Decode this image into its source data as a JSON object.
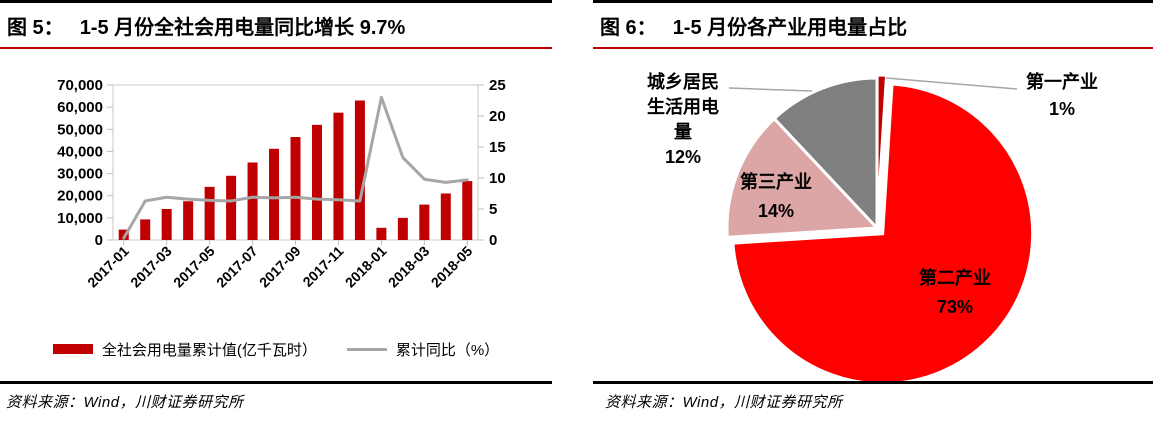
{
  "panels": {
    "fig5": {
      "title_prefix": "图 5：",
      "title": "1-5 月份全社会用电量同比增长 9.7%",
      "source": "资料来源：Wind，川财证券研究所",
      "accent_color": "#C00000"
    },
    "fig6": {
      "title_prefix": "图 6：",
      "title": "1-5 月份各产业用电量占比",
      "source": "资料来源：Wind，川财证券研究所",
      "accent_color": "#C00000"
    }
  },
  "chart_data": [
    {
      "type": "bar",
      "subtype": "bar+line dual axis",
      "title": "1-5 月份全社会用电量同比增长 9.7%",
      "x": [
        "2017-01",
        "2017-02",
        "2017-03",
        "2017-04",
        "2017-05",
        "2017-06",
        "2017-07",
        "2017-08",
        "2017-09",
        "2017-10",
        "2017-11",
        "2017-12",
        "2018-01",
        "2018-02",
        "2018-03",
        "2018-04",
        "2018-05"
      ],
      "x_tick_labels": [
        "2017-01",
        "2017-03",
        "2017-05",
        "2017-07",
        "2017-09",
        "2017-11",
        "2018-01",
        "2018-03",
        "2018-05"
      ],
      "series": [
        {
          "name": "全社会用电量累计值(亿千瓦时）",
          "type": "bar",
          "axis": "left",
          "color": "#C00000",
          "values": [
            4700,
            9300,
            14000,
            17500,
            24000,
            29000,
            35000,
            41200,
            46500,
            52000,
            57500,
            63000,
            5500,
            10000,
            16000,
            21000,
            26600
          ]
        },
        {
          "name": "累计同比（%）",
          "type": "line",
          "axis": "right",
          "color": "#A6A6A6",
          "values": [
            0.3,
            6.3,
            6.9,
            6.6,
            6.4,
            6.3,
            6.9,
            6.8,
            6.9,
            6.6,
            6.5,
            6.3,
            23.0,
            13.3,
            9.8,
            9.3,
            9.7
          ]
        }
      ],
      "left_axis": {
        "range": [
          0,
          70000
        ],
        "tick_labels": [
          "0",
          "10,000",
          "20,000",
          "30,000",
          "40,000",
          "50,000",
          "60,000",
          "70,000"
        ]
      },
      "right_axis": {
        "range": [
          0,
          25
        ],
        "tick_labels": [
          "0",
          "5",
          "10",
          "15",
          "20",
          "25"
        ]
      },
      "grid": false,
      "legend_position": "bottom"
    },
    {
      "type": "pie",
      "title": "1-5 月份各产业用电量占比",
      "start_angle_deg": 0,
      "direction": "clockwise",
      "slices": [
        {
          "key": "primary-industry",
          "label": "第一产业",
          "value": 1,
          "pct_label": "1%",
          "color": "#C00000"
        },
        {
          "key": "secondary-industry",
          "label": "第二产业",
          "value": 73,
          "pct_label": "73%",
          "color": "#FF0000"
        },
        {
          "key": "tertiary-industry",
          "label": "第三产业",
          "value": 14,
          "pct_label": "14%",
          "color": "#DCA6A6"
        },
        {
          "key": "urban-rural-residential",
          "label": "城乡居民生活用电量",
          "value": 12,
          "pct_label": "12%",
          "color": "#7F7F7F"
        }
      ]
    }
  ]
}
